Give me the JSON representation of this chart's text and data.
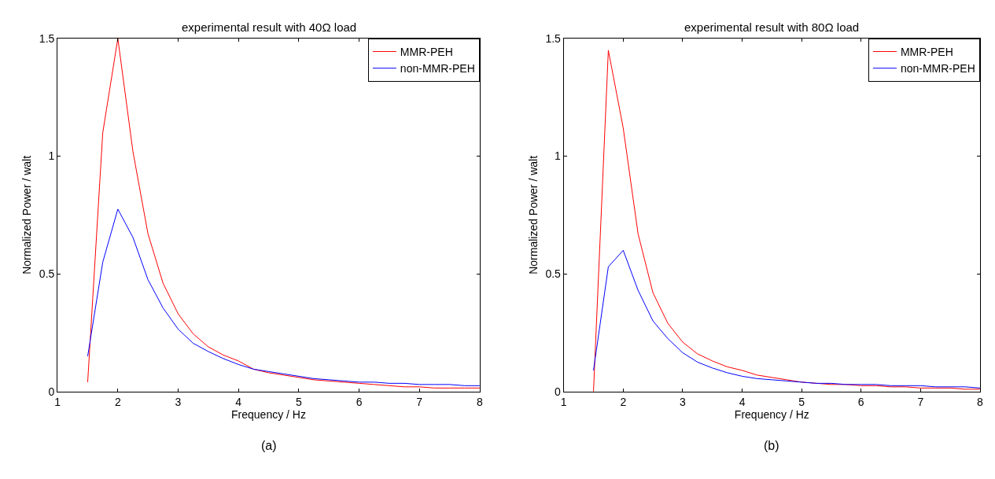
{
  "chart_data": [
    {
      "type": "line",
      "title": "experimental result with 40Ω load",
      "xlabel": "Frequency / Hz",
      "ylabel": "Normalized Power / walt",
      "x": [
        1.5,
        1.75,
        2,
        2.25,
        2.5,
        2.75,
        3,
        3.25,
        3.5,
        3.75,
        4,
        4.25,
        4.5,
        4.75,
        5,
        5.25,
        5.5,
        5.75,
        6,
        6.25,
        6.5,
        6.75,
        7,
        7.25,
        7.5,
        7.75,
        8
      ],
      "series": [
        {
          "name": "MMR-PEH",
          "color": "#ff0000",
          "values": [
            0.04,
            1.1,
            1.5,
            1.02,
            0.67,
            0.46,
            0.33,
            0.245,
            0.19,
            0.155,
            0.13,
            0.095,
            0.08,
            0.07,
            0.06,
            0.05,
            0.045,
            0.04,
            0.035,
            0.03,
            0.025,
            0.02,
            0.02,
            0.015,
            0.015,
            0.015,
            0.015
          ]
        },
        {
          "name": "non-MMR-PEH",
          "color": "#0000ff",
          "values": [
            0.15,
            0.55,
            0.775,
            0.655,
            0.475,
            0.355,
            0.265,
            0.205,
            0.17,
            0.14,
            0.115,
            0.095,
            0.085,
            0.075,
            0.065,
            0.055,
            0.05,
            0.045,
            0.04,
            0.04,
            0.035,
            0.035,
            0.03,
            0.03,
            0.03,
            0.025,
            0.025
          ]
        }
      ],
      "xlim": [
        1,
        8
      ],
      "xticks": [
        1,
        2,
        3,
        4,
        5,
        6,
        7,
        8
      ],
      "ylim": [
        0,
        1.5
      ],
      "yticks": [
        0,
        0.5,
        1,
        1.5
      ],
      "legend": "top right",
      "line_style": "solid",
      "annotations": [
        "(a)"
      ]
    },
    {
      "type": "line",
      "title": "experimental result with 80Ω load",
      "xlabel": "Frequency / Hz",
      "ylabel": "Normalized Power / walt",
      "x": [
        1.5,
        1.75,
        2,
        2.25,
        2.5,
        2.75,
        3,
        3.25,
        3.5,
        3.75,
        4,
        4.25,
        4.5,
        4.75,
        5,
        5.25,
        5.5,
        5.75,
        6,
        6.25,
        6.5,
        6.75,
        7,
        7.25,
        7.5,
        7.75,
        8
      ],
      "series": [
        {
          "name": "MMR-PEH",
          "color": "#ff0000",
          "values": [
            0,
            1.45,
            1.12,
            0.67,
            0.42,
            0.29,
            0.21,
            0.16,
            0.13,
            0.105,
            0.09,
            0.07,
            0.06,
            0.05,
            0.04,
            0.035,
            0.03,
            0.03,
            0.025,
            0.025,
            0.02,
            0.02,
            0.015,
            0.015,
            0.015,
            0.01,
            0.01
          ]
        },
        {
          "name": "non-MMR-PEH",
          "color": "#0000ff",
          "values": [
            0.09,
            0.53,
            0.6,
            0.43,
            0.3,
            0.225,
            0.165,
            0.125,
            0.1,
            0.08,
            0.065,
            0.055,
            0.05,
            0.045,
            0.04,
            0.035,
            0.035,
            0.03,
            0.03,
            0.03,
            0.025,
            0.025,
            0.025,
            0.02,
            0.02,
            0.02,
            0.015
          ]
        }
      ],
      "xlim": [
        1,
        8
      ],
      "xticks": [
        1,
        2,
        3,
        4,
        5,
        6,
        7,
        8
      ],
      "ylim": [
        0,
        1.5
      ],
      "yticks": [
        0,
        0.5,
        1,
        1.5
      ],
      "legend": "top right",
      "line_style": "solid",
      "annotations": [
        "(b)"
      ]
    }
  ]
}
